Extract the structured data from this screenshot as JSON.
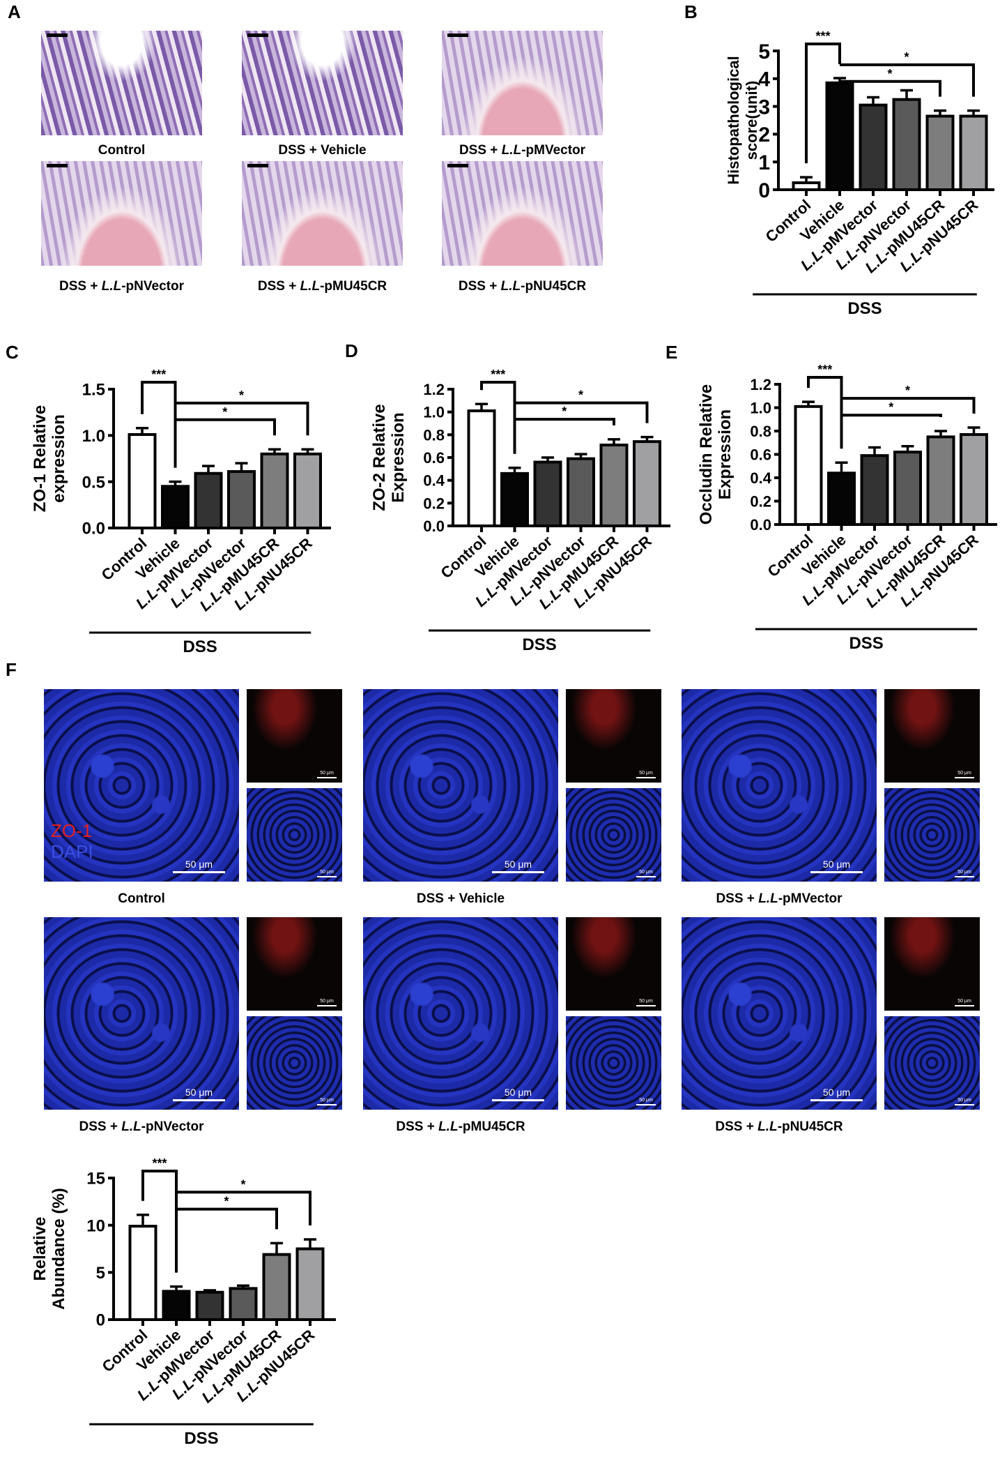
{
  "panels": {
    "A": "A",
    "B": "B",
    "C": "C",
    "D": "D",
    "E": "E",
    "F": "F"
  },
  "histology_captions": [
    "Control",
    "DSS + Vehicle",
    "DSS + L.L-pMVector",
    "DSS + L.L-pNVector",
    "DSS + L.L-pMU45CR",
    "DSS + L.L-pNU45CR"
  ],
  "fluorescence": {
    "captions": [
      "Control",
      "DSS + Vehicle",
      "DSS + L.L-pMVector",
      "DSS + L.L-pNVector",
      "DSS + L.L-pMU45CR",
      "DSS + L.L-pNU45CR"
    ],
    "channel_zo1": "ZO-1",
    "channel_dapi": "DAPI",
    "scale_label": "50 μm",
    "colors": {
      "zo1": "#e02020",
      "dapi": "#3a4ee0"
    }
  },
  "chart_data": [
    {
      "id": "B",
      "type": "bar",
      "ylabel_lines": [
        "Histopathological",
        "score(unit)"
      ],
      "ylim": [
        0,
        5
      ],
      "yticks": [
        0,
        1,
        2,
        3,
        4,
        5
      ],
      "ytick_labels": [
        "0",
        "1",
        "2",
        "3",
        "4",
        "5"
      ],
      "categories": [
        "Control",
        "Vehicle",
        "L.L-pMVector",
        "L.L-pNVector",
        "L.L-pMU45CR",
        "L.L-pNU45CR"
      ],
      "values": [
        0.25,
        3.85,
        3.05,
        3.25,
        2.65,
        2.65
      ],
      "errors": [
        0.2,
        0.17,
        0.28,
        0.33,
        0.2,
        0.2
      ],
      "group_label": "DSS",
      "significance": [
        {
          "from": 0,
          "to": 1,
          "label": "***"
        },
        {
          "from": 1,
          "to": 4,
          "label": "*"
        },
        {
          "from": 1,
          "to": 5,
          "label": "*"
        }
      ]
    },
    {
      "id": "C",
      "type": "bar",
      "ylabel_lines": [
        "ZO-1 Relative",
        "expression"
      ],
      "ylim": [
        0,
        1.5
      ],
      "yticks": [
        0,
        0.5,
        1,
        1.5
      ],
      "ytick_labels": [
        "0.0",
        "0.5",
        "1.0",
        "1.5"
      ],
      "categories": [
        "Control",
        "Vehicle",
        "L.L-pMVector",
        "L.L-pNVector",
        "L.L-pMU45CR",
        "L.L-pNU45CR"
      ],
      "values": [
        1.01,
        0.45,
        0.59,
        0.61,
        0.8,
        0.8
      ],
      "errors": [
        0.07,
        0.05,
        0.08,
        0.09,
        0.05,
        0.05
      ],
      "group_label": "DSS",
      "significance": [
        {
          "from": 0,
          "to": 1,
          "label": "***"
        },
        {
          "from": 1,
          "to": 4,
          "label": "*"
        },
        {
          "from": 1,
          "to": 5,
          "label": "*"
        }
      ]
    },
    {
      "id": "D",
      "type": "bar",
      "ylabel_lines": [
        "ZO-2 Relative",
        "Expression"
      ],
      "ylim": [
        0,
        1.2
      ],
      "yticks": [
        0,
        0.2,
        0.4,
        0.6,
        0.8,
        1,
        1.2
      ],
      "ytick_labels": [
        "0.0",
        "0.2",
        "0.4",
        "0.6",
        "0.8",
        "1.0",
        "1.2"
      ],
      "categories": [
        "Control",
        "Vehicle",
        "L.L-pMVector",
        "L.L-pNVector",
        "L.L-pMU45CR",
        "L.L-pNU45CR"
      ],
      "values": [
        1.01,
        0.46,
        0.56,
        0.59,
        0.71,
        0.74
      ],
      "errors": [
        0.06,
        0.05,
        0.04,
        0.04,
        0.05,
        0.04
      ],
      "group_label": "DSS",
      "significance": [
        {
          "from": 0,
          "to": 1,
          "label": "***"
        },
        {
          "from": 1,
          "to": 4,
          "label": "*"
        },
        {
          "from": 1,
          "to": 5,
          "label": "*"
        }
      ]
    },
    {
      "id": "E",
      "type": "bar",
      "ylabel_lines": [
        "Occludin Relative",
        "Expression"
      ],
      "ylim": [
        0,
        1.2
      ],
      "yticks": [
        0,
        0.2,
        0.4,
        0.6,
        0.8,
        1,
        1.2
      ],
      "ytick_labels": [
        "0.0",
        "0.2",
        "0.4",
        "0.6",
        "0.8",
        "1.0",
        "1.2"
      ],
      "categories": [
        "Control",
        "Vehicle",
        "L.L-pMVector",
        "L.L-pNVector",
        "L.L-pMU45CR",
        "L.L-pNU45CR"
      ],
      "values": [
        1.01,
        0.44,
        0.59,
        0.62,
        0.75,
        0.77
      ],
      "errors": [
        0.04,
        0.09,
        0.07,
        0.05,
        0.05,
        0.06
      ],
      "group_label": "DSS",
      "significance": [
        {
          "from": 0,
          "to": 1,
          "label": "***"
        },
        {
          "from": 1,
          "to": 4,
          "label": "*"
        },
        {
          "from": 1,
          "to": 5,
          "label": "*"
        }
      ]
    },
    {
      "id": "F",
      "type": "bar",
      "ylabel_lines": [
        "Relative",
        "Abundance (%)"
      ],
      "ylim": [
        0,
        15
      ],
      "yticks": [
        0,
        5,
        10,
        15
      ],
      "ytick_labels": [
        "0",
        "5",
        "10",
        "15"
      ],
      "categories": [
        "Control",
        "Vehicle",
        "L.L-pMVector",
        "L.L-pNVector",
        "L.L-pMU45CR",
        "L.L-pNU45CR"
      ],
      "values": [
        9.9,
        3.0,
        2.9,
        3.3,
        6.9,
        7.5
      ],
      "errors": [
        1.2,
        0.5,
        0.2,
        0.3,
        1.2,
        1.0
      ],
      "group_label": "DSS",
      "significance": [
        {
          "from": 0,
          "to": 1,
          "label": "***"
        },
        {
          "from": 1,
          "to": 4,
          "label": "*"
        },
        {
          "from": 1,
          "to": 5,
          "label": "*"
        }
      ]
    }
  ],
  "bar_colors": [
    "#ffffff",
    "#050505",
    "#333333",
    "#5a5a5a",
    "#7d7d7d",
    "#a0a0a2"
  ]
}
